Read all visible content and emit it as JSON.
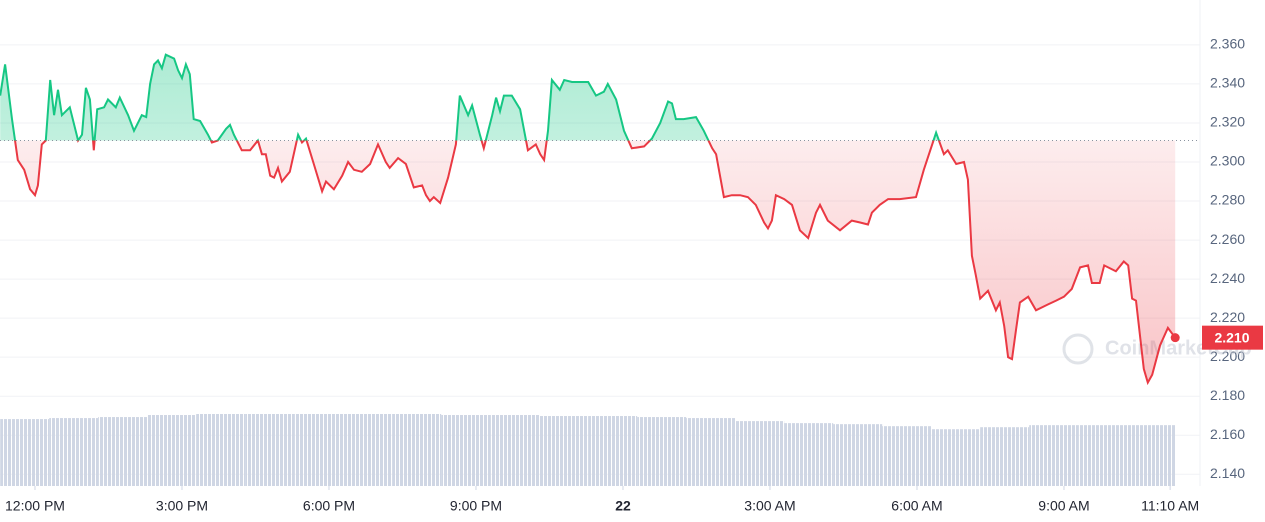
{
  "chart_data": {
    "type": "line",
    "watermark": "CoinMarketCap",
    "x": [
      11.29,
      11.39,
      11.53,
      11.65,
      11.78,
      11.9,
      12.0,
      12.06,
      12.14,
      12.22,
      12.31,
      12.39,
      12.47,
      12.55,
      12.71,
      12.88,
      12.96,
      13.04,
      13.12,
      13.2,
      13.27,
      13.41,
      13.49,
      13.65,
      13.73,
      13.9,
      14.02,
      14.18,
      14.27,
      14.35,
      14.43,
      14.51,
      14.59,
      14.67,
      14.84,
      14.92,
      15.0,
      15.08,
      15.16,
      15.24,
      15.37,
      15.53,
      15.61,
      15.73,
      15.9,
      15.98,
      16.06,
      16.22,
      16.39,
      16.55,
      16.63,
      16.71,
      16.8,
      16.88,
      16.96,
      17.04,
      17.2,
      17.37,
      17.45,
      17.53,
      17.69,
      17.86,
      17.94,
      18.1,
      18.27,
      18.39,
      18.51,
      18.67,
      18.84,
      19.0,
      19.16,
      19.24,
      19.41,
      19.57,
      19.73,
      19.9,
      19.98,
      20.06,
      20.14,
      20.27,
      20.43,
      20.59,
      20.67,
      20.84,
      20.92,
      21.08,
      21.16,
      21.33,
      21.41,
      21.49,
      21.57,
      21.73,
      21.9,
      22.06,
      22.22,
      22.31,
      22.39,
      22.47,
      22.55,
      22.71,
      22.8,
      22.96,
      23.29,
      23.45,
      23.61,
      23.69,
      23.86,
      24.02,
      24.18,
      24.43,
      24.59,
      24.76,
      24.92,
      25.0,
      25.08,
      25.24,
      25.49,
      25.65,
      25.82,
      25.9,
      25.98,
      26.06,
      26.22,
      26.39,
      26.55,
      26.71,
      26.88,
      26.96,
      27.04,
      27.12,
      27.29,
      27.45,
      27.61,
      27.78,
      27.94,
      28.02,
      28.18,
      28.43,
      28.67,
      28.84,
      29.0,
      29.08,
      29.24,
      29.41,
      29.65,
      29.98,
      30.14,
      30.31,
      30.39,
      30.55,
      30.63,
      30.8,
      30.96,
      31.04,
      31.12,
      31.2,
      31.29,
      31.45,
      31.61,
      31.69,
      31.78,
      31.86,
      31.94,
      32.02,
      32.1,
      32.27,
      32.43,
      32.67,
      32.84,
      33.0,
      33.16,
      33.33,
      33.49,
      33.57,
      33.73,
      33.82,
      34.06,
      34.22,
      34.31,
      34.39,
      34.47,
      34.63,
      34.71,
      34.8,
      34.96,
      35.12,
      35.27
    ],
    "values": [
      2.334,
      2.35,
      2.322,
      2.301,
      2.296,
      2.286,
      2.283,
      2.288,
      2.309,
      2.311,
      2.342,
      2.324,
      2.337,
      2.324,
      2.328,
      2.311,
      2.314,
      2.338,
      2.332,
      2.306,
      2.327,
      2.328,
      2.332,
      2.328,
      2.333,
      2.324,
      2.316,
      2.324,
      2.323,
      2.34,
      2.35,
      2.352,
      2.348,
      2.355,
      2.353,
      2.347,
      2.343,
      2.35,
      2.345,
      2.322,
      2.321,
      2.314,
      2.31,
      2.311,
      2.317,
      2.319,
      2.314,
      2.306,
      2.306,
      2.311,
      2.304,
      2.304,
      2.293,
      2.292,
      2.297,
      2.29,
      2.295,
      2.314,
      2.31,
      2.312,
      2.299,
      2.285,
      2.29,
      2.286,
      2.293,
      2.3,
      2.296,
      2.295,
      2.299,
      2.309,
      2.3,
      2.297,
      2.302,
      2.299,
      2.287,
      2.288,
      2.283,
      2.28,
      2.282,
      2.279,
      2.292,
      2.309,
      2.334,
      2.324,
      2.329,
      2.314,
      2.307,
      2.324,
      2.333,
      2.326,
      2.334,
      2.334,
      2.327,
      2.306,
      2.309,
      2.304,
      2.301,
      2.316,
      2.342,
      2.337,
      2.342,
      2.341,
      2.341,
      2.334,
      2.336,
      2.34,
      2.332,
      2.316,
      2.307,
      2.308,
      2.312,
      2.32,
      2.331,
      2.33,
      2.322,
      2.322,
      2.323,
      2.316,
      2.307,
      2.304,
      2.293,
      2.282,
      2.283,
      2.283,
      2.282,
      2.278,
      2.269,
      2.266,
      2.27,
      2.283,
      2.281,
      2.278,
      2.265,
      2.261,
      2.274,
      2.278,
      2.27,
      2.265,
      2.27,
      2.269,
      2.268,
      2.274,
      2.278,
      2.281,
      2.281,
      2.282,
      2.296,
      2.309,
      2.315,
      2.304,
      2.306,
      2.299,
      2.3,
      2.291,
      2.252,
      2.242,
      2.23,
      2.234,
      2.224,
      2.228,
      2.216,
      2.2,
      2.199,
      2.214,
      2.228,
      2.231,
      2.224,
      2.227,
      2.229,
      2.231,
      2.235,
      2.246,
      2.247,
      2.238,
      2.238,
      2.247,
      2.244,
      2.249,
      2.247,
      2.23,
      2.229,
      2.194,
      2.187,
      2.191,
      2.206,
      2.215,
      2.21
    ],
    "current_label": "2.210",
    "baseline": 2.311,
    "up_color": "#16c784",
    "down_color": "#ea3943",
    "volume": {
      "x": [
        11.29,
        12.29,
        13.29,
        14.29,
        15.29,
        16.29,
        17.29,
        18.29,
        19.29,
        20.29,
        21.29,
        22.29,
        23.29,
        24.29,
        25.29,
        26.29,
        27.29,
        28.29,
        29.29,
        30.29,
        31.29,
        32.29,
        33.29,
        34.29
      ],
      "values": [
        66,
        67,
        68,
        70,
        71,
        71,
        71,
        71,
        71,
        70,
        70,
        69,
        69,
        68,
        67,
        64,
        62,
        61,
        59,
        56,
        58,
        60,
        60,
        60
      ],
      "color": "#cfd6e4"
    },
    "xlim": [
      11.286,
      35.776
    ],
    "ylim": [
      2.134,
      2.383
    ],
    "yticks": [
      {
        "value": 2.14,
        "label": "2.140"
      },
      {
        "value": 2.16,
        "label": "2.160"
      },
      {
        "value": 2.18,
        "label": "2.180"
      },
      {
        "value": 2.2,
        "label": "2.200"
      },
      {
        "value": 2.22,
        "label": "2.220"
      },
      {
        "value": 2.24,
        "label": "2.240"
      },
      {
        "value": 2.26,
        "label": "2.260"
      },
      {
        "value": 2.28,
        "label": "2.280"
      },
      {
        "value": 2.3,
        "label": "2.300"
      },
      {
        "value": 2.32,
        "label": "2.320"
      },
      {
        "value": 2.34,
        "label": "2.340"
      },
      {
        "value": 2.36,
        "label": "2.360"
      }
    ],
    "xticks": [
      {
        "value": 12,
        "label": "12:00 PM"
      },
      {
        "value": 15,
        "label": "3:00 PM"
      },
      {
        "value": 18,
        "label": "6:00 PM"
      },
      {
        "value": 21,
        "label": "9:00 PM"
      },
      {
        "value": 24,
        "label": "22"
      },
      {
        "value": 27,
        "label": "3:00 AM"
      },
      {
        "value": 30,
        "label": "6:00 AM"
      },
      {
        "value": 33,
        "label": "9:00 AM"
      },
      {
        "value": 35.1667,
        "label": "11:10 AM"
      }
    ],
    "grid": true
  }
}
